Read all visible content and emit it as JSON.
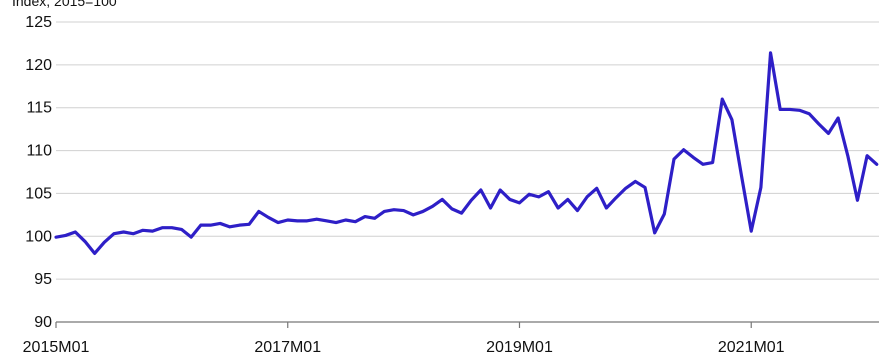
{
  "chart_data": {
    "type": "line",
    "subtitle": "Index, 2015=100",
    "x_tick_labels": [
      "2015M01",
      "2017M01",
      "2019M01",
      "2021M01"
    ],
    "y_ticks": [
      90,
      95,
      100,
      105,
      110,
      115,
      120,
      125
    ],
    "ylim": [
      90,
      125
    ],
    "grid": "horizontal",
    "colors": {
      "series": "#2e1fc7",
      "grid": "#d0d0d0",
      "axis": "#777777"
    },
    "series": [
      {
        "start": "2015M01",
        "values": [
          99.9,
          100.1,
          100.5,
          99.4,
          98.0,
          99.3,
          100.3,
          100.5,
          100.3,
          100.7,
          100.6,
          101.0,
          101.0,
          100.8,
          99.9,
          101.3,
          101.3,
          101.5,
          101.1,
          101.3,
          101.4,
          102.9,
          102.2,
          101.6,
          101.9,
          101.8,
          101.8,
          102.0,
          101.8,
          101.6,
          101.9,
          101.7,
          102.3,
          102.1,
          102.9,
          103.1,
          103.0,
          102.5,
          102.9,
          103.5,
          104.3,
          103.2,
          102.7,
          104.2,
          105.4,
          103.3,
          105.4,
          104.3,
          103.9,
          104.9,
          104.6,
          105.2,
          103.3,
          104.3,
          103.0,
          104.6,
          105.6,
          103.3,
          104.5,
          105.6,
          106.4,
          105.7,
          100.4,
          102.6,
          109.0,
          110.1,
          109.2,
          108.4,
          108.6,
          116.0,
          113.6,
          107.0,
          100.6,
          105.7,
          121.4,
          114.8,
          114.8,
          114.7,
          114.3,
          113.1,
          112.0,
          113.8,
          109.4,
          104.2,
          109.4,
          108.4
        ]
      }
    ]
  }
}
